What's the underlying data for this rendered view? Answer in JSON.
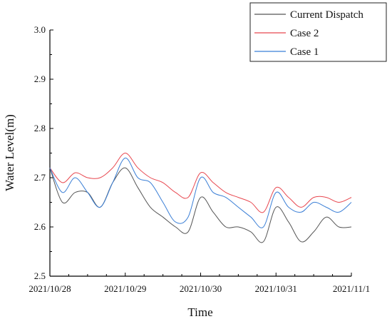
{
  "chart_data": {
    "type": "line",
    "title": "",
    "xlabel": "Time",
    "ylabel": "Water Level(m)",
    "xlim": [
      "2021-10-28",
      "2021-11-01"
    ],
    "ylim": [
      2.5,
      3.0
    ],
    "x_ticks": [
      "2021/10/28",
      "2021/10/29",
      "2021/10/30",
      "2021/10/31",
      "2021/11/1"
    ],
    "y_ticks": [
      "2.5",
      "2.6",
      "2.7",
      "2.8",
      "2.9",
      "3.0"
    ],
    "grid": false,
    "legend_position": "top-right",
    "x": [
      "2021-10-28 00:00",
      "2021-10-28 04:00",
      "2021-10-28 08:00",
      "2021-10-28 12:00",
      "2021-10-28 16:00",
      "2021-10-28 20:00",
      "2021-10-29 00:00",
      "2021-10-29 04:00",
      "2021-10-29 08:00",
      "2021-10-29 12:00",
      "2021-10-29 16:00",
      "2021-10-29 20:00",
      "2021-10-30 00:00",
      "2021-10-30 04:00",
      "2021-10-30 08:00",
      "2021-10-30 12:00",
      "2021-10-30 16:00",
      "2021-10-30 20:00",
      "2021-10-31 00:00",
      "2021-10-31 04:00",
      "2021-10-31 08:00",
      "2021-10-31 12:00",
      "2021-10-31 16:00",
      "2021-10-31 20:00",
      "2021-11-01 00:00"
    ],
    "series": [
      {
        "name": "Current Dispatch",
        "color": "#555555",
        "values": [
          2.72,
          2.65,
          2.67,
          2.67,
          2.64,
          2.69,
          2.72,
          2.68,
          2.64,
          2.62,
          2.6,
          2.59,
          2.66,
          2.63,
          2.6,
          2.6,
          2.59,
          2.57,
          2.64,
          2.61,
          2.57,
          2.59,
          2.62,
          2.6,
          2.6
        ]
      },
      {
        "name": "Case 2",
        "color": "#e8474f",
        "values": [
          2.72,
          2.69,
          2.71,
          2.7,
          2.7,
          2.72,
          2.75,
          2.72,
          2.7,
          2.69,
          2.67,
          2.66,
          2.71,
          2.69,
          2.67,
          2.66,
          2.65,
          2.63,
          2.68,
          2.66,
          2.64,
          2.66,
          2.66,
          2.65,
          2.66
        ]
      },
      {
        "name": "Case 1",
        "color": "#3b7fd6",
        "values": [
          2.72,
          2.67,
          2.7,
          2.67,
          2.64,
          2.69,
          2.74,
          2.7,
          2.69,
          2.65,
          2.61,
          2.62,
          2.7,
          2.67,
          2.66,
          2.64,
          2.62,
          2.6,
          2.67,
          2.64,
          2.63,
          2.65,
          2.64,
          2.63,
          2.65
        ]
      }
    ]
  }
}
